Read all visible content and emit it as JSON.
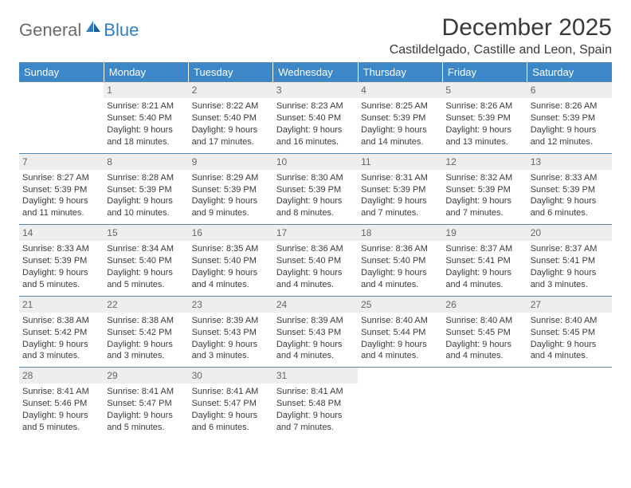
{
  "logo": {
    "general": "General",
    "blue": "Blue"
  },
  "title": "December 2025",
  "location": "Castildelgado, Castille and Leon, Spain",
  "colors": {
    "header_bg": "#3b87c8",
    "header_text": "#ffffff",
    "border": "#5a86a8",
    "daynum_bg": "#eeeeee",
    "text": "#3a3a3a"
  },
  "weekdays": [
    "Sunday",
    "Monday",
    "Tuesday",
    "Wednesday",
    "Thursday",
    "Friday",
    "Saturday"
  ],
  "weeks": [
    [
      null,
      {
        "n": "1",
        "sr": "8:21 AM",
        "ss": "5:40 PM",
        "dl1": "Daylight: 9 hours",
        "dl2": "and 18 minutes."
      },
      {
        "n": "2",
        "sr": "8:22 AM",
        "ss": "5:40 PM",
        "dl1": "Daylight: 9 hours",
        "dl2": "and 17 minutes."
      },
      {
        "n": "3",
        "sr": "8:23 AM",
        "ss": "5:40 PM",
        "dl1": "Daylight: 9 hours",
        "dl2": "and 16 minutes."
      },
      {
        "n": "4",
        "sr": "8:25 AM",
        "ss": "5:39 PM",
        "dl1": "Daylight: 9 hours",
        "dl2": "and 14 minutes."
      },
      {
        "n": "5",
        "sr": "8:26 AM",
        "ss": "5:39 PM",
        "dl1": "Daylight: 9 hours",
        "dl2": "and 13 minutes."
      },
      {
        "n": "6",
        "sr": "8:26 AM",
        "ss": "5:39 PM",
        "dl1": "Daylight: 9 hours",
        "dl2": "and 12 minutes."
      }
    ],
    [
      {
        "n": "7",
        "sr": "8:27 AM",
        "ss": "5:39 PM",
        "dl1": "Daylight: 9 hours",
        "dl2": "and 11 minutes."
      },
      {
        "n": "8",
        "sr": "8:28 AM",
        "ss": "5:39 PM",
        "dl1": "Daylight: 9 hours",
        "dl2": "and 10 minutes."
      },
      {
        "n": "9",
        "sr": "8:29 AM",
        "ss": "5:39 PM",
        "dl1": "Daylight: 9 hours",
        "dl2": "and 9 minutes."
      },
      {
        "n": "10",
        "sr": "8:30 AM",
        "ss": "5:39 PM",
        "dl1": "Daylight: 9 hours",
        "dl2": "and 8 minutes."
      },
      {
        "n": "11",
        "sr": "8:31 AM",
        "ss": "5:39 PM",
        "dl1": "Daylight: 9 hours",
        "dl2": "and 7 minutes."
      },
      {
        "n": "12",
        "sr": "8:32 AM",
        "ss": "5:39 PM",
        "dl1": "Daylight: 9 hours",
        "dl2": "and 7 minutes."
      },
      {
        "n": "13",
        "sr": "8:33 AM",
        "ss": "5:39 PM",
        "dl1": "Daylight: 9 hours",
        "dl2": "and 6 minutes."
      }
    ],
    [
      {
        "n": "14",
        "sr": "8:33 AM",
        "ss": "5:39 PM",
        "dl1": "Daylight: 9 hours",
        "dl2": "and 5 minutes."
      },
      {
        "n": "15",
        "sr": "8:34 AM",
        "ss": "5:40 PM",
        "dl1": "Daylight: 9 hours",
        "dl2": "and 5 minutes."
      },
      {
        "n": "16",
        "sr": "8:35 AM",
        "ss": "5:40 PM",
        "dl1": "Daylight: 9 hours",
        "dl2": "and 4 minutes."
      },
      {
        "n": "17",
        "sr": "8:36 AM",
        "ss": "5:40 PM",
        "dl1": "Daylight: 9 hours",
        "dl2": "and 4 minutes."
      },
      {
        "n": "18",
        "sr": "8:36 AM",
        "ss": "5:40 PM",
        "dl1": "Daylight: 9 hours",
        "dl2": "and 4 minutes."
      },
      {
        "n": "19",
        "sr": "8:37 AM",
        "ss": "5:41 PM",
        "dl1": "Daylight: 9 hours",
        "dl2": "and 4 minutes."
      },
      {
        "n": "20",
        "sr": "8:37 AM",
        "ss": "5:41 PM",
        "dl1": "Daylight: 9 hours",
        "dl2": "and 3 minutes."
      }
    ],
    [
      {
        "n": "21",
        "sr": "8:38 AM",
        "ss": "5:42 PM",
        "dl1": "Daylight: 9 hours",
        "dl2": "and 3 minutes."
      },
      {
        "n": "22",
        "sr": "8:38 AM",
        "ss": "5:42 PM",
        "dl1": "Daylight: 9 hours",
        "dl2": "and 3 minutes."
      },
      {
        "n": "23",
        "sr": "8:39 AM",
        "ss": "5:43 PM",
        "dl1": "Daylight: 9 hours",
        "dl2": "and 3 minutes."
      },
      {
        "n": "24",
        "sr": "8:39 AM",
        "ss": "5:43 PM",
        "dl1": "Daylight: 9 hours",
        "dl2": "and 4 minutes."
      },
      {
        "n": "25",
        "sr": "8:40 AM",
        "ss": "5:44 PM",
        "dl1": "Daylight: 9 hours",
        "dl2": "and 4 minutes."
      },
      {
        "n": "26",
        "sr": "8:40 AM",
        "ss": "5:45 PM",
        "dl1": "Daylight: 9 hours",
        "dl2": "and 4 minutes."
      },
      {
        "n": "27",
        "sr": "8:40 AM",
        "ss": "5:45 PM",
        "dl1": "Daylight: 9 hours",
        "dl2": "and 4 minutes."
      }
    ],
    [
      {
        "n": "28",
        "sr": "8:41 AM",
        "ss": "5:46 PM",
        "dl1": "Daylight: 9 hours",
        "dl2": "and 5 minutes."
      },
      {
        "n": "29",
        "sr": "8:41 AM",
        "ss": "5:47 PM",
        "dl1": "Daylight: 9 hours",
        "dl2": "and 5 minutes."
      },
      {
        "n": "30",
        "sr": "8:41 AM",
        "ss": "5:47 PM",
        "dl1": "Daylight: 9 hours",
        "dl2": "and 6 minutes."
      },
      {
        "n": "31",
        "sr": "8:41 AM",
        "ss": "5:48 PM",
        "dl1": "Daylight: 9 hours",
        "dl2": "and 7 minutes."
      },
      null,
      null,
      null
    ]
  ]
}
